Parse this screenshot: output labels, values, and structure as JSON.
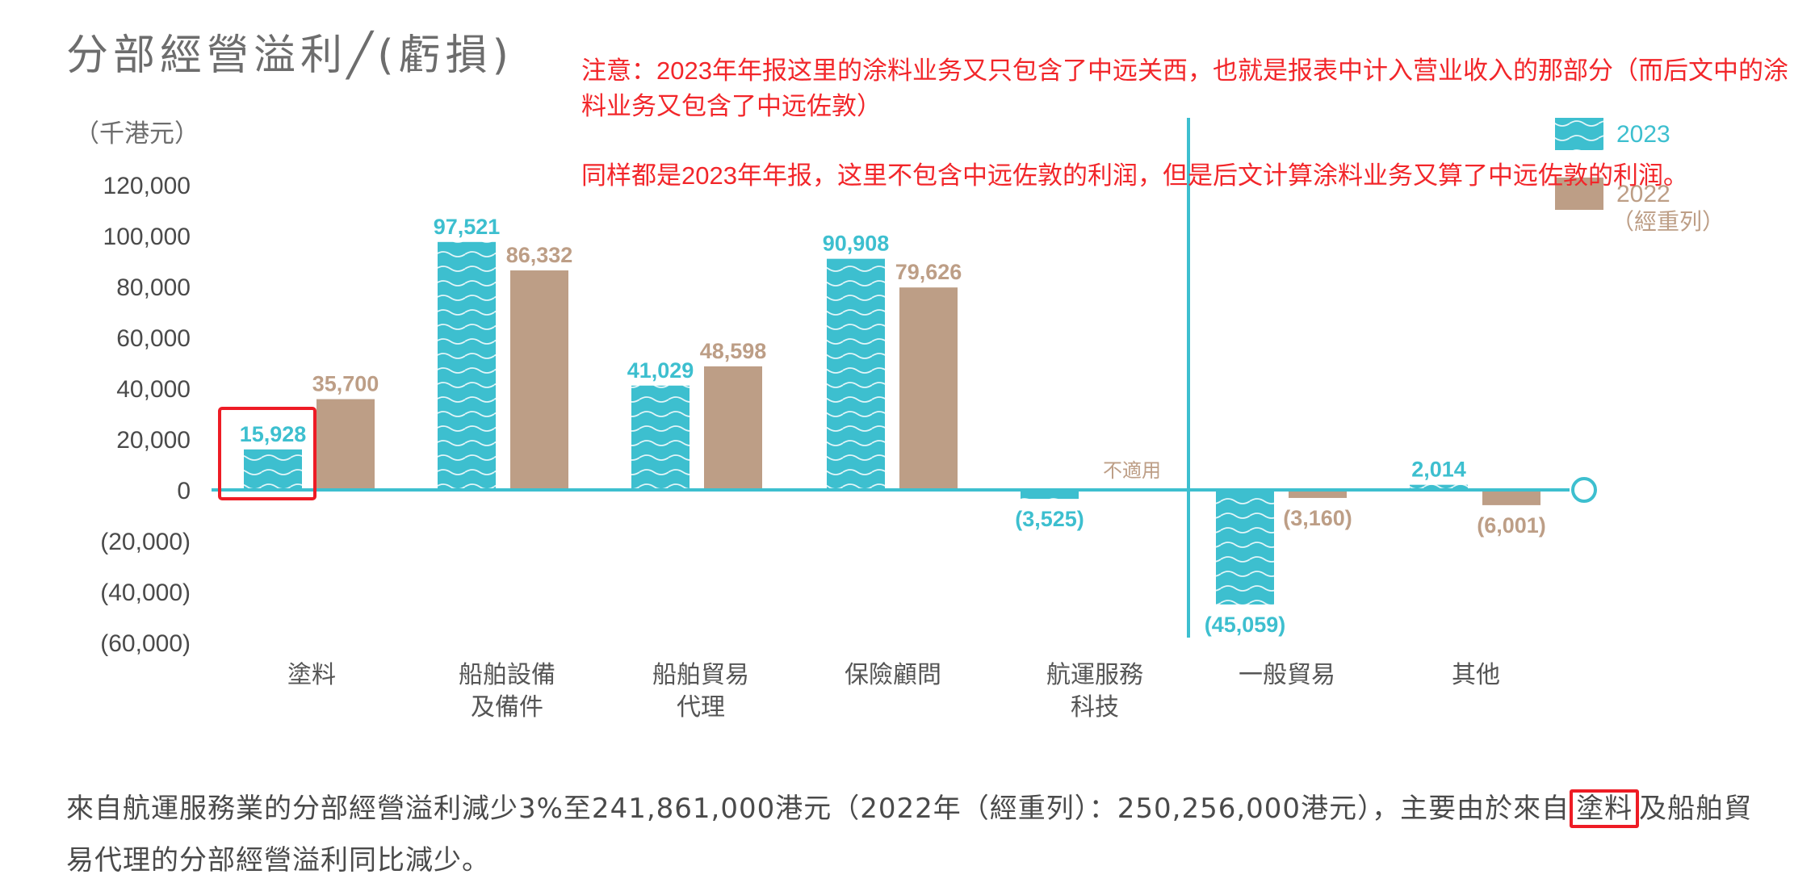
{
  "chart_data": {
    "type": "bar",
    "title": "分部經營溢利╱(虧損)",
    "unit_label": "（千港元）",
    "categories": [
      "塗料",
      "船舶設備\n及備件",
      "船舶貿易\n代理",
      "保險顧問",
      "航運服務\n科技",
      "一般貿易",
      "其他"
    ],
    "series": [
      {
        "name": "2023",
        "values": [
          15928,
          97521,
          41029,
          90908,
          -3525,
          -45059,
          2014
        ],
        "labels": [
          "15,928",
          "97,521",
          "41,029",
          "90,908",
          "(3,525)",
          "(45,059)",
          "2,014"
        ],
        "color": "#3dbfcf"
      },
      {
        "name": "2022",
        "name_sub": "（經重列）",
        "values": [
          35700,
          86332,
          48598,
          79626,
          null,
          -3160,
          -6001
        ],
        "labels": [
          "35,700",
          "86,332",
          "48,598",
          "79,626",
          "不適用",
          "(3,160)",
          "(6,001)"
        ],
        "color": "#bd9e86"
      }
    ],
    "ylim": [
      -60000,
      120000
    ],
    "yticks": [
      120000,
      100000,
      80000,
      60000,
      40000,
      20000,
      0,
      -20000,
      -40000,
      -60000
    ],
    "ytick_labels": [
      "120,000",
      "100,000",
      "80,000",
      "60,000",
      "40,000",
      "20,000",
      "0",
      "(20,000)",
      "(40,000)",
      "(60,000)"
    ],
    "grid": false,
    "legend_position": "top-right"
  },
  "annotations": {
    "note1": "注意：2023年年报这里的涂料业务又只包含了中远关西，也就是报表中计入营业收入的那部分（而后文中的涂料业务又包含了中远佐敦）",
    "note2": "同样都是2023年年报，这里不包含中远佐敦的利润，但是后文计算涂料业务又算了中远佐敦的利润。",
    "highlight_color": "#ee1c25"
  },
  "footer": {
    "text_before": "來自航運服務業的分部經營溢利減少3%至241,861,000港元（2022年（經重列）：250,256,000港元），主要由於來自",
    "highlight": "塗料",
    "text_after": "及船舶貿易代理的分部經營溢利同比減少。"
  }
}
